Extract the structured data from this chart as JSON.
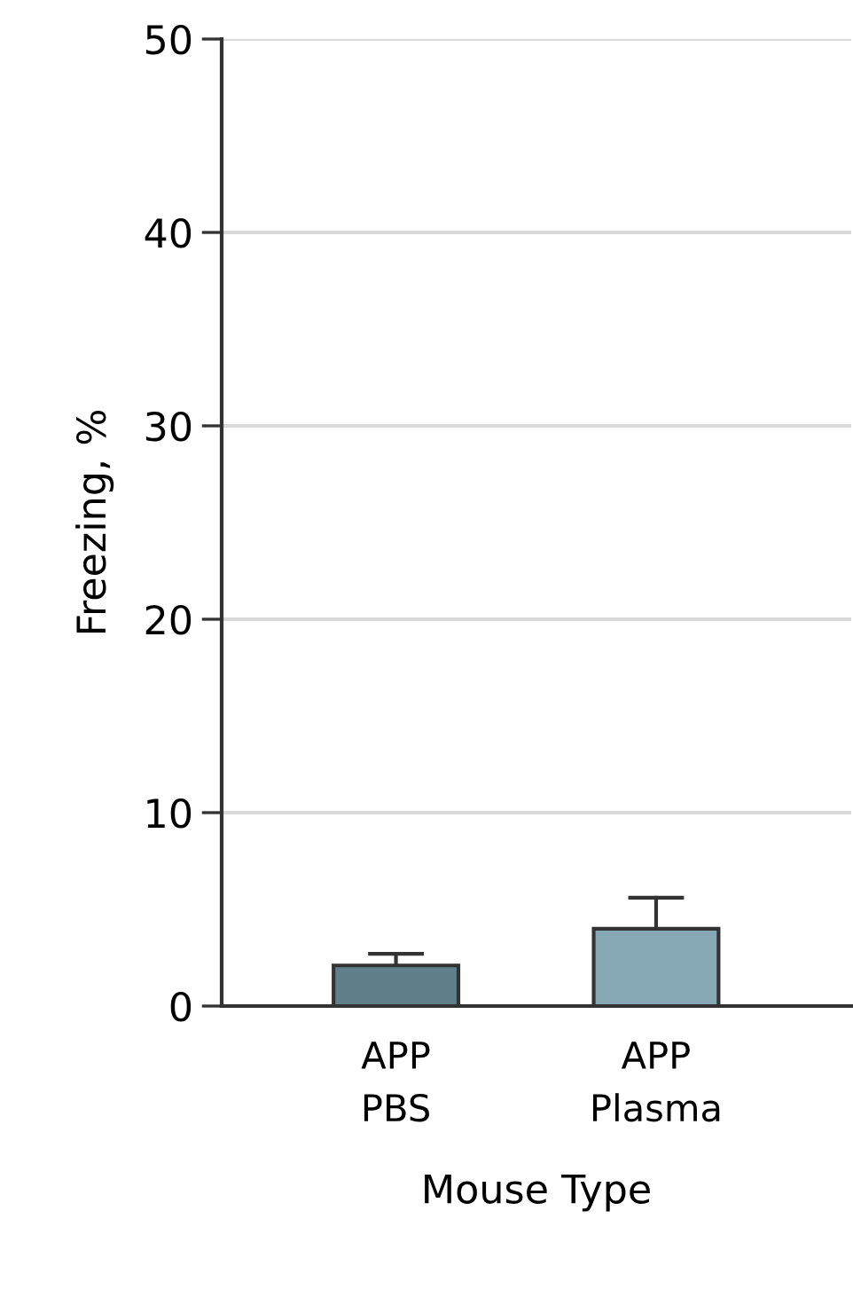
{
  "chart_data": {
    "type": "bar",
    "xlabel": "Mouse Type",
    "ylabel": "Freezing, %",
    "categories": [
      "APP\nPBS",
      "APP\nPlasma"
    ],
    "values": [
      2.1,
      4.0
    ],
    "colors": [
      "#5f808b",
      "#87a9b6"
    ],
    "errors": [
      [
        2.1,
        2.7
      ],
      [
        4.0,
        5.6
      ]
    ],
    "ylim": [
      0,
      50
    ],
    "yticks": [
      0,
      10,
      20,
      30,
      40,
      50
    ],
    "grid": "y",
    "legend": false
  }
}
